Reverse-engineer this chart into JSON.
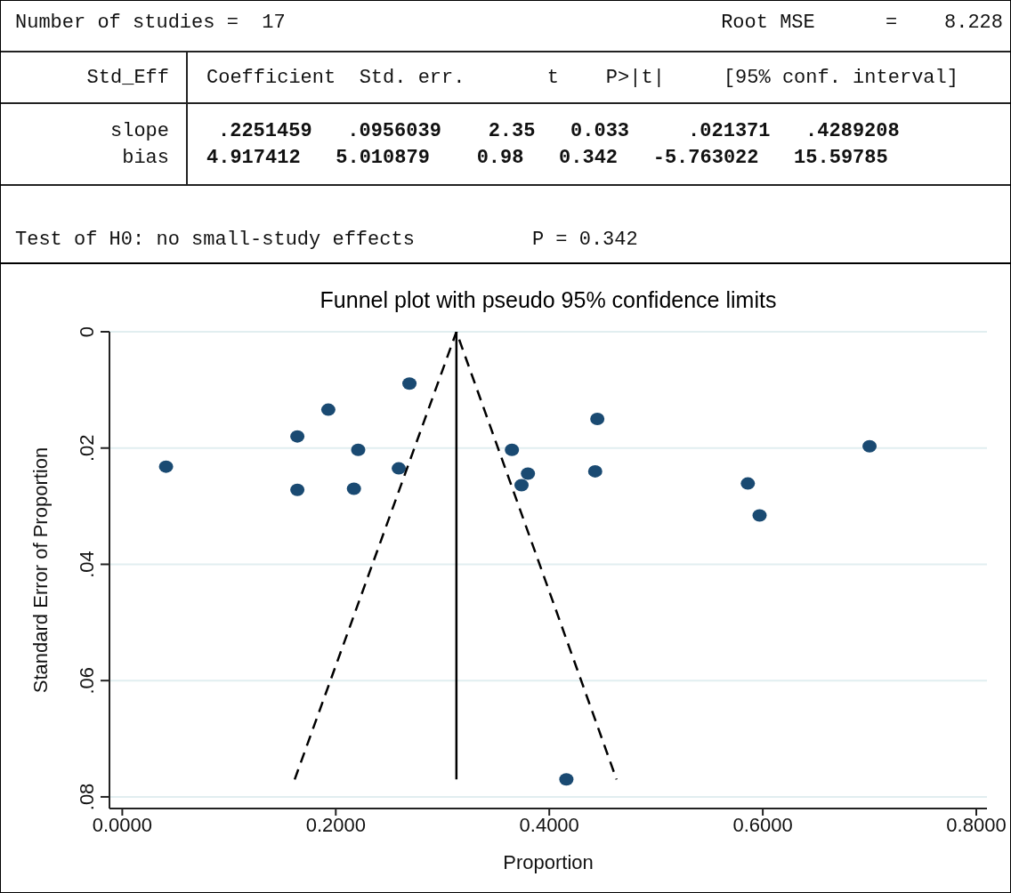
{
  "chart_data": {
    "type": "scatter",
    "title": "Funnel plot with pseudo 95% confidence limits",
    "xlabel": "Proportion",
    "ylabel": "Standard Error of Proportion",
    "annotations": [
      "Number of studies =  17",
      "Root MSE      =    8.228",
      "Std_Eff",
      "Coefficient  Std. err.       t    P>|t|     [95% conf. interval]",
      "slope",
      "bias",
      ".2251459   .0956039    2.35   0.033     .021371   .4289208",
      "4.917412   5.010879    0.98   0.342   -5.763022   15.59785",
      "Test of H0: no small-study effects          P = 0.342"
    ],
    "xlim": [
      -0.012,
      0.81
    ],
    "xticks": [
      {
        "value": 0,
        "label": "0.0000"
      },
      {
        "value": 0.2,
        "label": "0.2000"
      },
      {
        "value": 0.4,
        "label": "0.4000"
      },
      {
        "value": 0.6,
        "label": "0.6000"
      },
      {
        "value": 0.8,
        "label": "0.8000"
      }
    ],
    "ylim": [
      0.082,
      0
    ],
    "yticks": [
      {
        "value": 0,
        "label": "0"
      },
      {
        "value": 0.02,
        "label": ".02"
      },
      {
        "value": 0.04,
        "label": ".04"
      },
      {
        "value": 0.06,
        "label": ".06"
      },
      {
        "value": 0.08,
        "label": ".08"
      }
    ],
    "grid": "y",
    "legend": false,
    "marker": "circle",
    "series": [
      {
        "color": "#1a4a72",
        "x": [
          0.041,
          0.164,
          0.164,
          0.193,
          0.221,
          0.217,
          0.259,
          0.269,
          0.365,
          0.38,
          0.374,
          0.445,
          0.443,
          0.586,
          0.597,
          0.7,
          0.416
        ],
        "values": [
          0.0232,
          0.018,
          0.0272,
          0.0134,
          0.0203,
          0.027,
          0.0235,
          0.0089,
          0.0203,
          0.0244,
          0.0264,
          0.015,
          0.024,
          0.0261,
          0.0316,
          0.0197,
          0.077
        ]
      },
      {
        "type": "line",
        "color": "#000000",
        "line_style": "solid",
        "marker": "none",
        "x": [
          0.313,
          0.313
        ],
        "values": [
          0,
          0.077
        ]
      },
      {
        "type": "line",
        "color": "#000000",
        "line_style": "dashed",
        "marker": "none",
        "x": [
          0.1615,
          0.313,
          0.463
        ],
        "values": [
          0.077,
          0,
          0.077
        ]
      }
    ]
  }
}
